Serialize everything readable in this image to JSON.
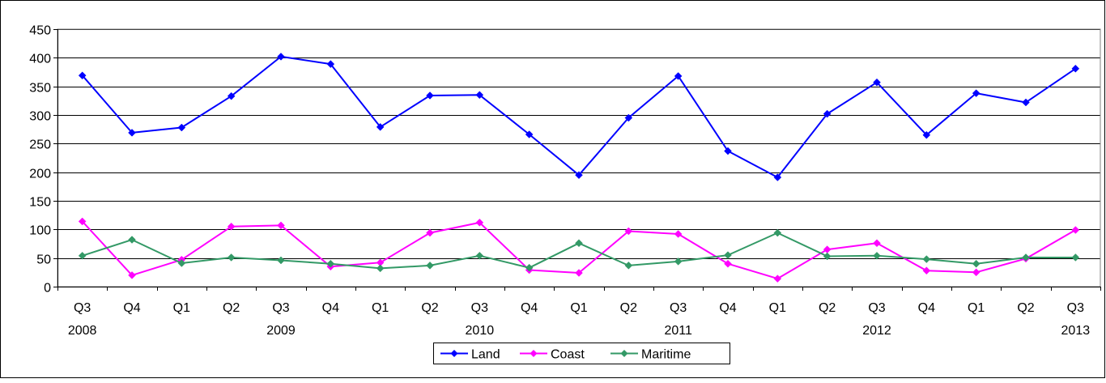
{
  "chart_data": {
    "type": "line",
    "title": "",
    "xlabel": "",
    "ylabel": "",
    "ylim": [
      0,
      450
    ],
    "yticks": [
      0,
      50,
      100,
      150,
      200,
      250,
      300,
      350,
      400,
      450
    ],
    "grid": true,
    "legend_position": "bottom",
    "categories": [
      {
        "quarter": "Q3",
        "year": "2008"
      },
      {
        "quarter": "Q4",
        "year": ""
      },
      {
        "quarter": "Q1",
        "year": ""
      },
      {
        "quarter": "Q2",
        "year": ""
      },
      {
        "quarter": "Q3",
        "year": "2009"
      },
      {
        "quarter": "Q4",
        "year": ""
      },
      {
        "quarter": "Q1",
        "year": ""
      },
      {
        "quarter": "Q2",
        "year": ""
      },
      {
        "quarter": "Q3",
        "year": "2010"
      },
      {
        "quarter": "Q4",
        "year": ""
      },
      {
        "quarter": "Q1",
        "year": ""
      },
      {
        "quarter": "Q2",
        "year": ""
      },
      {
        "quarter": "Q3",
        "year": "2011"
      },
      {
        "quarter": "Q4",
        "year": ""
      },
      {
        "quarter": "Q1",
        "year": ""
      },
      {
        "quarter": "Q2",
        "year": ""
      },
      {
        "quarter": "Q3",
        "year": "2012"
      },
      {
        "quarter": "Q4",
        "year": ""
      },
      {
        "quarter": "Q1",
        "year": ""
      },
      {
        "quarter": "Q2",
        "year": ""
      },
      {
        "quarter": "Q3",
        "year": "2013"
      }
    ],
    "series": [
      {
        "name": "Land",
        "color": "#0000ff",
        "values": [
          369,
          269,
          278,
          333,
          402,
          389,
          279,
          334,
          335,
          266,
          195,
          295,
          368,
          237,
          191,
          302,
          357,
          265,
          338,
          322,
          381
        ]
      },
      {
        "name": "Coast",
        "color": "#ff00ff",
        "values": [
          114,
          20,
          47,
          105,
          107,
          35,
          42,
          94,
          112,
          29,
          24,
          97,
          92,
          40,
          14,
          65,
          76,
          28,
          25,
          49,
          99
        ]
      },
      {
        "name": "Maritime",
        "color": "#339966",
        "values": [
          54,
          82,
          41,
          51,
          46,
          40,
          32,
          37,
          54,
          33,
          76,
          37,
          44,
          55,
          94,
          53,
          54,
          48,
          40,
          51,
          51
        ]
      }
    ]
  }
}
